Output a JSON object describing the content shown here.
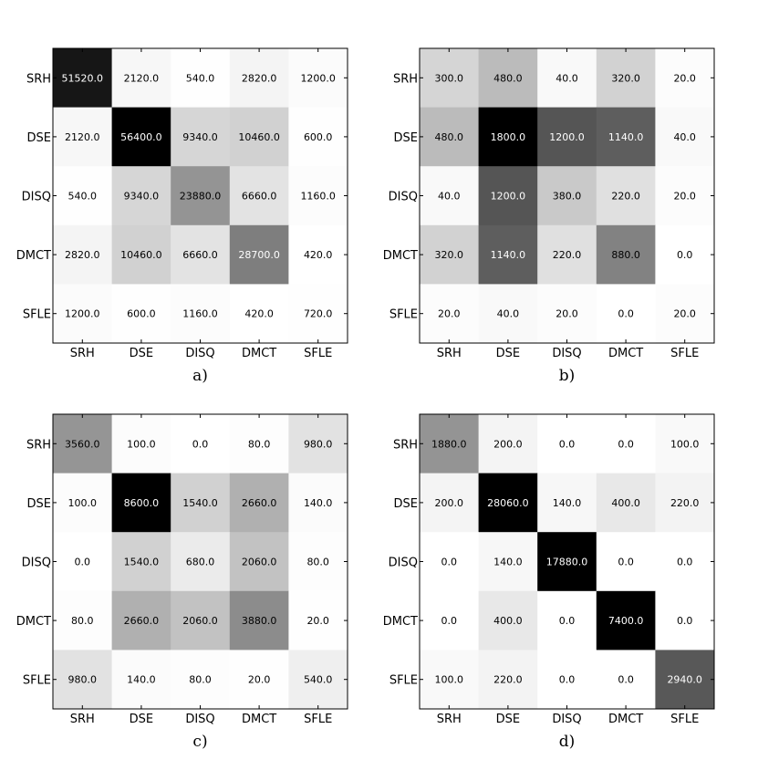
{
  "chart_data": [
    {
      "type": "heatmap",
      "caption": "a)",
      "rows": [
        "SRH",
        "DSE",
        "DISQ",
        "DMCT",
        "SFLE"
      ],
      "cols": [
        "SRH",
        "DSE",
        "DISQ",
        "DMCT",
        "SFLE"
      ],
      "values": [
        [
          51520,
          2120,
          540,
          2820,
          1200
        ],
        [
          2120,
          56400,
          9340,
          10460,
          600
        ],
        [
          540,
          9340,
          23880,
          6660,
          1160
        ],
        [
          2820,
          10460,
          6660,
          28700,
          420
        ],
        [
          1200,
          600,
          1160,
          420,
          720
        ]
      ],
      "labels": [
        [
          "51520.0",
          "2120.0",
          "540.0",
          "2820.0",
          "1200.0"
        ],
        [
          "2120.0",
          "56400.0",
          "9340.0",
          "10460.0",
          "600.0"
        ],
        [
          "540.0",
          "9340.0",
          "23880.0",
          "6660.0",
          "1160.0"
        ],
        [
          "2820.0",
          "10460.0",
          "6660.0",
          "28700.0",
          "420.0"
        ],
        [
          "1200.0",
          "600.0",
          "1160.0",
          "420.0",
          "720.0"
        ]
      ],
      "shade_max": 56400,
      "shade_min": 420,
      "colormap": "gray_r"
    },
    {
      "type": "heatmap",
      "caption": "b)",
      "rows": [
        "SRH",
        "DSE",
        "DISQ",
        "DMCT",
        "SFLE"
      ],
      "cols": [
        "SRH",
        "DSE",
        "DISQ",
        "DMCT",
        "SFLE"
      ],
      "values": [
        [
          300,
          480,
          40,
          320,
          20
        ],
        [
          480,
          1800,
          1200,
          1140,
          40
        ],
        [
          40,
          1200,
          380,
          220,
          20
        ],
        [
          320,
          1140,
          220,
          880,
          0
        ],
        [
          20,
          40,
          20,
          0,
          20
        ]
      ],
      "labels": [
        [
          "300.0",
          "480.0",
          "40.0",
          "320.0",
          "20.0"
        ],
        [
          "480.0",
          "1800.0",
          "1200.0",
          "1140.0",
          "40.0"
        ],
        [
          "40.0",
          "1200.0",
          "380.0",
          "220.0",
          "20.0"
        ],
        [
          "320.0",
          "1140.0",
          "220.0",
          "880.0",
          "0.0"
        ],
        [
          "20.0",
          "40.0",
          "20.0",
          "0.0",
          "20.0"
        ]
      ],
      "shade_max": 1800,
      "shade_min": 0,
      "colormap": "gray_r"
    },
    {
      "type": "heatmap",
      "caption": "c)",
      "rows": [
        "SRH",
        "DSE",
        "DISQ",
        "DMCT",
        "SFLE"
      ],
      "cols": [
        "SRH",
        "DSE",
        "DISQ",
        "DMCT",
        "SFLE"
      ],
      "values": [
        [
          3560,
          100,
          0,
          80,
          980
        ],
        [
          100,
          8600,
          1540,
          2660,
          140
        ],
        [
          0,
          1540,
          680,
          2060,
          80
        ],
        [
          80,
          2660,
          2060,
          3880,
          20
        ],
        [
          980,
          140,
          80,
          20,
          540
        ]
      ],
      "labels": [
        [
          "3560.0",
          "100.0",
          "0.0",
          "80.0",
          "980.0"
        ],
        [
          "100.0",
          "8600.0",
          "1540.0",
          "2660.0",
          "140.0"
        ],
        [
          "0.0",
          "1540.0",
          "680.0",
          "2060.0",
          "80.0"
        ],
        [
          "80.0",
          "2660.0",
          "2060.0",
          "3880.0",
          "20.0"
        ],
        [
          "980.0",
          "140.0",
          "80.0",
          "20.0",
          "540.0"
        ]
      ],
      "shade_max": 8600,
      "shade_min": 0,
      "colormap": "gray_r"
    },
    {
      "type": "heatmap",
      "caption": "d)",
      "rows": [
        "SRH",
        "DSE",
        "DISQ",
        "DMCT",
        "SFLE"
      ],
      "cols": [
        "SRH",
        "DSE",
        "DISQ",
        "DMCT",
        "SFLE"
      ],
      "values": [
        [
          1880,
          200,
          0,
          0,
          100
        ],
        [
          200,
          28060,
          140,
          400,
          220
        ],
        [
          0,
          140,
          17880,
          0,
          0
        ],
        [
          0,
          400,
          0,
          7400,
          0
        ],
        [
          100,
          220,
          0,
          0,
          2940
        ]
      ],
      "labels": [
        [
          "1880.0",
          "200.0",
          "0.0",
          "0.0",
          "100.0"
        ],
        [
          "200.0",
          "28060.0",
          "140.0",
          "400.0",
          "220.0"
        ],
        [
          "0.0",
          "140.0",
          "17880.0",
          "0.0",
          "0.0"
        ],
        [
          "0.0",
          "400.0",
          "0.0",
          "7400.0",
          "0.0"
        ],
        [
          "100.0",
          "220.0",
          "0.0",
          "0.0",
          "2940.0"
        ]
      ],
      "shade_max": 4500,
      "shade_min": 0,
      "colormap": "gray_r"
    }
  ]
}
